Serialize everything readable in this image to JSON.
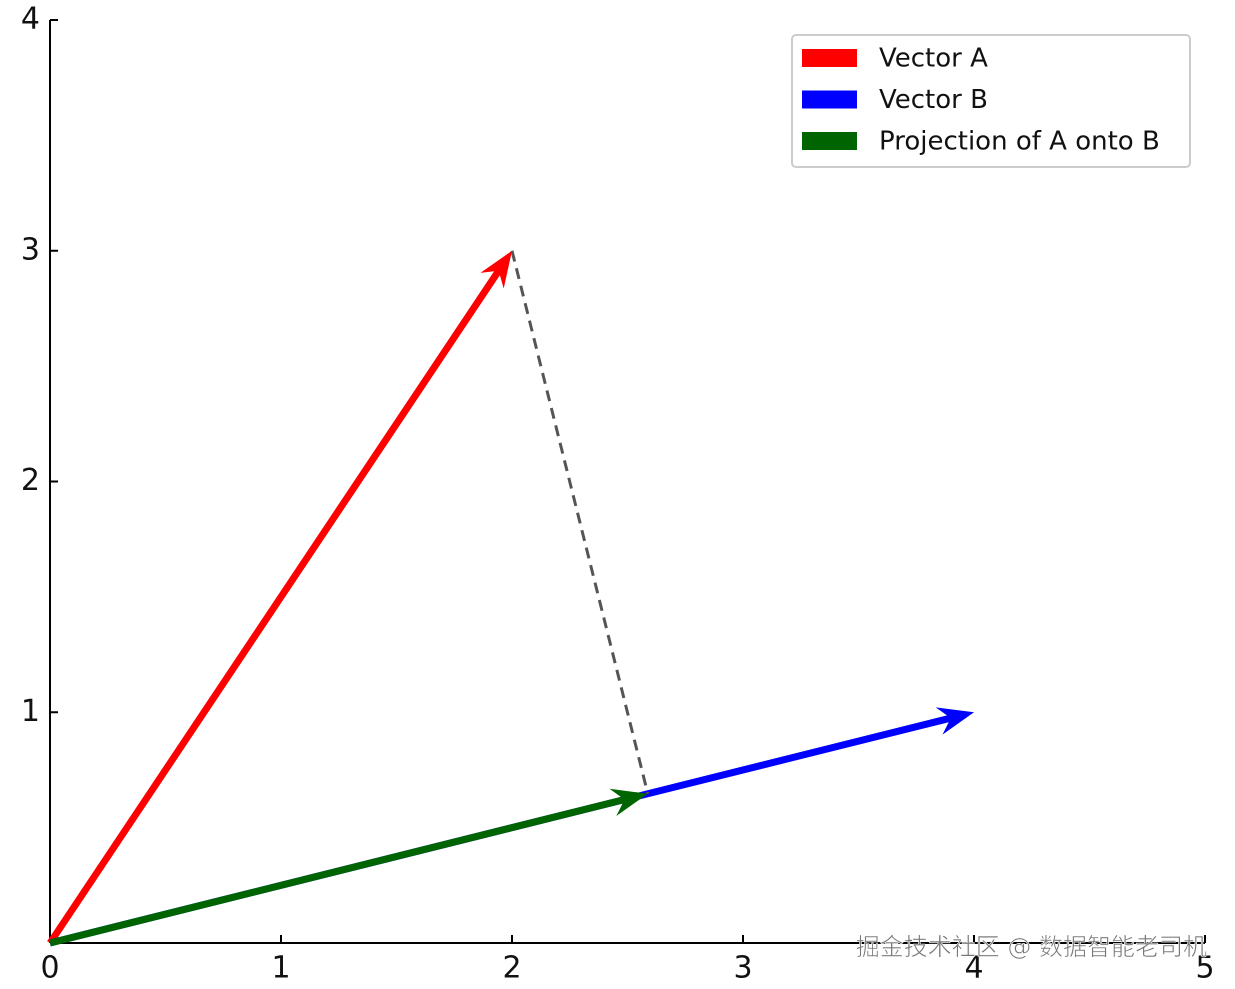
{
  "chart_data": {
    "type": "quiver",
    "series": [
      {
        "name": "Vector A",
        "color": "#ff0000",
        "x": [
          0
        ],
        "y": [
          0
        ],
        "u": [
          2
        ],
        "v": [
          3
        ]
      },
      {
        "name": "Vector B",
        "color": "#0000ff",
        "x": [
          0
        ],
        "y": [
          0
        ],
        "u": [
          4
        ],
        "v": [
          1
        ]
      },
      {
        "name": "Projection of A onto B",
        "color": "#006400",
        "x": [
          0
        ],
        "y": [
          0
        ],
        "u": [
          2.588
        ],
        "v": [
          0.647
        ]
      }
    ],
    "lines": [
      {
        "x": [
          2,
          2.588
        ],
        "y": [
          3,
          0.647
        ],
        "color": "#555555",
        "style": "dashed"
      }
    ],
    "xlim": [
      0,
      5
    ],
    "ylim": [
      0,
      4
    ],
    "xticks": [
      0,
      1,
      2,
      3,
      4,
      5
    ],
    "yticks": [
      1,
      2,
      3,
      4
    ],
    "grid": false,
    "legend": "upper right",
    "watermark": "掘金技术社区 @ 数据智能老司机"
  }
}
